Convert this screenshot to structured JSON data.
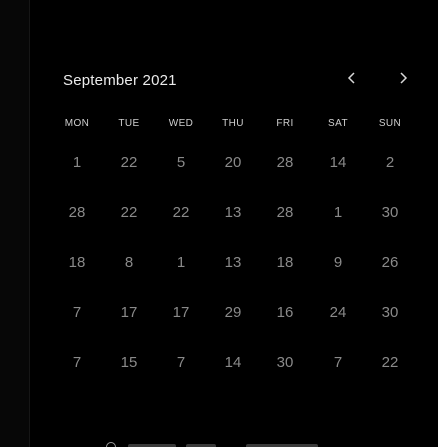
{
  "calendar": {
    "month_title": "September 2021",
    "nav": {
      "prev_icon": "chevron-left-icon",
      "next_icon": "chevron-right-icon"
    },
    "weekdays": [
      "MON",
      "TUE",
      "WED",
      "THU",
      "FRI",
      "SAT",
      "SUN"
    ],
    "weeks": [
      [
        "1",
        "22",
        "5",
        "20",
        "28",
        "14",
        "2"
      ],
      [
        "28",
        "22",
        "22",
        "13",
        "28",
        "1",
        "30"
      ],
      [
        "18",
        "8",
        "1",
        "13",
        "18",
        "9",
        "26"
      ],
      [
        "7",
        "17",
        "17",
        "29",
        "16",
        "24",
        "30"
      ],
      [
        "7",
        "15",
        "7",
        "14",
        "30",
        "7",
        "22"
      ]
    ]
  },
  "colors": {
    "background": "#000000",
    "title_text": "#ececec",
    "weekday_text": "#cfcfcf",
    "day_text": "#8a8a8a"
  }
}
